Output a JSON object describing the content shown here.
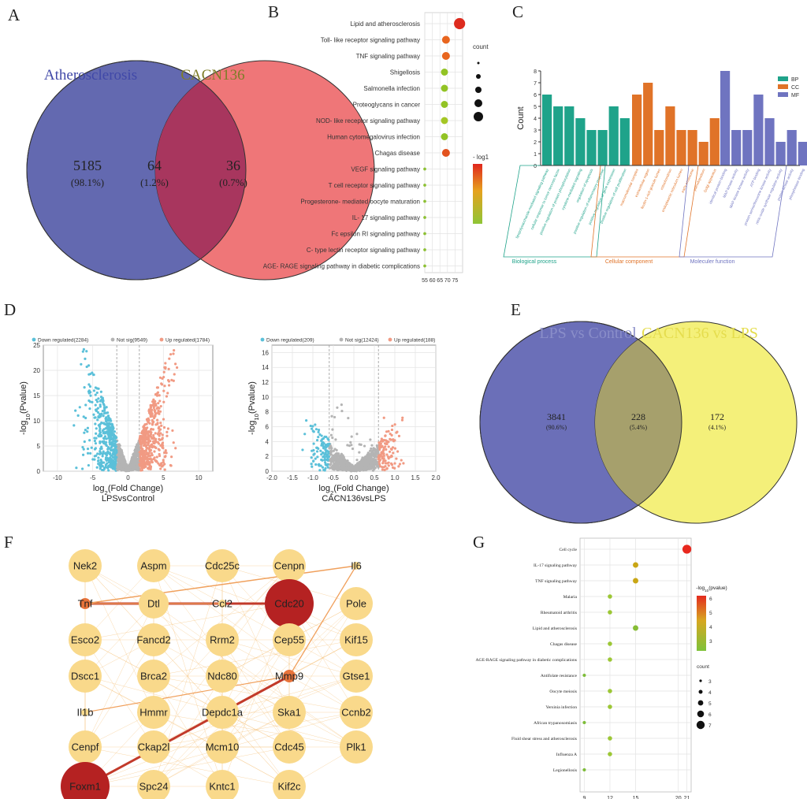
{
  "panel_labels": [
    "A",
    "B",
    "C",
    "D",
    "E",
    "F",
    "G"
  ],
  "venn_a": {
    "left_name": "Atherosclerosis",
    "right_name": "CACN136",
    "left": {
      "count": "5185",
      "pct": "(98.1%)"
    },
    "mid": {
      "count": "64",
      "pct": "(1.2%)"
    },
    "right": {
      "count": "36",
      "pct": "(0.7%)"
    },
    "colors": {
      "left": "#6369b0",
      "right": "#ef7678",
      "mid": "#a8365e",
      "left_text": "#4048a8",
      "right_text": "#7e7d28"
    }
  },
  "chart_data": [
    {
      "id": "B",
      "type": "scatter",
      "title": "",
      "categories": [
        "Lipid and atherosclerosis",
        "Toll- like receptor signaling pathway",
        "TNF signaling pathway",
        "Shigellosis",
        "Salmonella infection",
        "Proteoglycans in cancer",
        "NOD- like receptor signaling pathway",
        "Human cytomegalovirus infection",
        "Chagas disease",
        "VEGF signaling pathway",
        "T cell receptor signaling pathway",
        "Progesterone- mediated oocyte maturation",
        "IL- 17 signaling pathway",
        "Fc epsilon RI signaling pathway",
        "C- type lectin receptor signaling pathway",
        "AGE- RAGE signaling pathway in diabetic complications"
      ],
      "x": [
        78,
        69,
        69,
        68,
        68,
        68,
        68,
        68,
        69,
        55,
        55,
        55,
        55,
        55,
        55,
        55
      ],
      "sizes": [
        6,
        4,
        4,
        3.5,
        3.5,
        3.5,
        3.5,
        3.5,
        4,
        1,
        1,
        1,
        1,
        1,
        1,
        1
      ],
      "colors": [
        "#dd2b1e",
        "#e8651e",
        "#e8651e",
        "#92c324",
        "#92c324",
        "#92c324",
        "#a4c624",
        "#92c324",
        "#e2521e",
        "#8cc033",
        "#8cc033",
        "#8cc033",
        "#8cc033",
        "#8cc033",
        "#8cc033",
        "#8cc033"
      ],
      "xticks": [
        "55",
        "60",
        "65",
        "70",
        "75"
      ],
      "xlim": [
        55,
        80
      ],
      "legend_count_title": "count",
      "legend_color_title": "- log1"
    },
    {
      "id": "C",
      "type": "bar",
      "ylabel": "Count",
      "ylim": [
        0,
        8
      ],
      "yticks": [
        "0",
        "1",
        "2",
        "3",
        "4",
        "5",
        "6",
        "7",
        "8"
      ],
      "series": [
        {
          "name": "BP",
          "color": "#1fa38a",
          "values": [
            6,
            5,
            5,
            4,
            3,
            3,
            5,
            4
          ],
          "terms": [
            "lipopolysaccharide-mediated signaling pathway",
            "cellular response to tumor necrosis factor",
            "positive regulation of protein phosphorylation",
            "cytokine-mediated signaling",
            "regulation of apoptosis",
            "positive regulation of inflammatory response",
            "positive regulation of gene expression",
            "positive regulation of cell proliferation"
          ]
        },
        {
          "name": "CC",
          "color": "#e07328",
          "values": [
            6,
            7,
            3,
            5,
            3,
            3,
            2,
            4
          ],
          "terms": [
            "macromolecular complex",
            "extracellular region",
            "ficolin-1-rich granule lumen",
            "mitochondrion",
            "endoplasmic reticulum lumen",
            "early endosome",
            "pseudopodium",
            "Golgi apparatus"
          ]
        },
        {
          "name": "MF",
          "color": "#6f74c0",
          "values": [
            8,
            3,
            3,
            6,
            4,
            2,
            3,
            2
          ],
          "terms": [
            "identical protein binding",
            "MAP kinase activity",
            "MAP kinase kinase activity",
            "ATP binding",
            "protein serine/threonine kinase activity",
            "nitric-oxide synthase regulator activity",
            "protein kinase activity",
            "phosphatase binding"
          ]
        }
      ],
      "groups": [
        "Biological process",
        "Cellular component",
        "Moleculer function"
      ]
    },
    {
      "id": "D1",
      "type": "scatter",
      "xlabel_pre": "log",
      "xlabel_sub": "2",
      "xlabel_post": "(Fold Change)",
      "xlabel2": "LPSvsControl",
      "ylabel_pre": "-log",
      "ylabel_sub": "10",
      "ylabel_post": "(Pvalue)",
      "legend": [
        "Down regulated(2284)",
        "Not sig(9549)",
        "Up regulated(1784)"
      ],
      "xticks": [
        "-10",
        "-5",
        "0",
        "5",
        "10"
      ],
      "xlim": [
        -12,
        12
      ],
      "yticks": [
        "0",
        "5",
        "10",
        "15",
        "20",
        "25"
      ],
      "ylim": [
        0,
        25
      ]
    },
    {
      "id": "D2",
      "type": "scatter",
      "xlabel_pre": "log",
      "xlabel_sub": "2",
      "xlabel_post": "(Fold Change)",
      "xlabel2": "CACN136vsLPS",
      "ylabel_pre": "-log",
      "ylabel_sub": "10",
      "ylabel_post": "(Pvalue)",
      "legend": [
        "Down regulated(209)",
        "Not sig(12424)",
        "Up regulated(188)"
      ],
      "xticks": [
        "-2.0",
        "-1.5",
        "-1.0",
        "-0.5",
        "0.0",
        "0.5",
        "1.0",
        "1.5",
        "2.0"
      ],
      "xlim": [
        -2,
        2
      ],
      "yticks": [
        "0",
        "2",
        "4",
        "6",
        "8",
        "10",
        "12",
        "14",
        "16"
      ],
      "ylim": [
        0,
        17
      ]
    },
    {
      "id": "G",
      "type": "scatter",
      "categories": [
        "Cell cycle",
        "IL-17 signaling pathway",
        "TNF signaling pathway",
        "Malaria",
        "Rheumatoid arthritis",
        "Lipid and atherosclerosis",
        "Chagas disease",
        "AGE-RAGE signaling pathway in diabetic complications",
        "Antifolate resistance",
        "Oocyte meiosis",
        "Yersinia infection",
        "African trypanosomiasis",
        "Fluid shear stress and atherosclerosis",
        "Influenza A",
        "Legionellosis"
      ],
      "x": [
        21,
        15,
        15,
        12,
        12,
        15,
        12,
        12,
        9,
        12,
        12,
        9,
        12,
        12,
        9
      ],
      "sizes": [
        7,
        4,
        4,
        3,
        3,
        4,
        3,
        3,
        2,
        3,
        3,
        2,
        3,
        3,
        2
      ],
      "colors": [
        "#e8281e",
        "#c9a615",
        "#c9a615",
        "#9cc735",
        "#9cc735",
        "#86bd35",
        "#9cc735",
        "#9cc735",
        "#7dbc38",
        "#9cc735",
        "#9cc735",
        "#7dbc38",
        "#9cc735",
        "#9cc735",
        "#7dbc38"
      ],
      "xticks": [
        "9",
        "12",
        "15",
        "20",
        "21"
      ],
      "xlim": [
        8.5,
        21.5
      ],
      "legend_color_title_pre": "-log",
      "legend_color_title_sub": "10",
      "legend_color_title_post": "(pvalue)",
      "color_ticks": [
        "6",
        "5",
        "4",
        "3"
      ],
      "legend_count_title": "count",
      "count_ticks": [
        "3",
        "4",
        "5",
        "6",
        "7"
      ]
    }
  ],
  "venn_e": {
    "left_name": "LPS vs Control",
    "right_name": "CACN136 vs LPS",
    "left": {
      "count": "3841",
      "pct": "(90.6%)"
    },
    "mid": {
      "count": "228",
      "pct": "(5.4%)"
    },
    "right": {
      "count": "172",
      "pct": "(4.1%)"
    },
    "colors": {
      "left": "#6b6fb8",
      "right": "#f4f07a",
      "mid": "#a6a06c",
      "left_text": "#8a8ec9",
      "right_text": "#e5dd4e"
    }
  },
  "network": {
    "nodes": [
      "Nek2",
      "Aspm",
      "Cdc25c",
      "Cenpn",
      "Il6",
      "Tnf",
      "Dtl",
      "Ccl2",
      "Cdc20",
      "Pole",
      "Esco2",
      "Fancd2",
      "Rrm2",
      "Cep55",
      "Kif15",
      "Dscc1",
      "Brca2",
      "Ndc80",
      "Mmp9",
      "Gtse1",
      "Il1b",
      "Hmmr",
      "Depdc1a",
      "Ska1",
      "Ccnb2",
      "Cenpf",
      "Ckap2l",
      "Mcm10",
      "Cdc45",
      "Plk1",
      "Foxm1",
      "Spc24",
      "Kntc1",
      "Kif2c"
    ],
    "node_color": "#f9d98b",
    "hub_color": "#b52222",
    "mid_color": "#e8733a",
    "edge_color": "#f4b866"
  }
}
